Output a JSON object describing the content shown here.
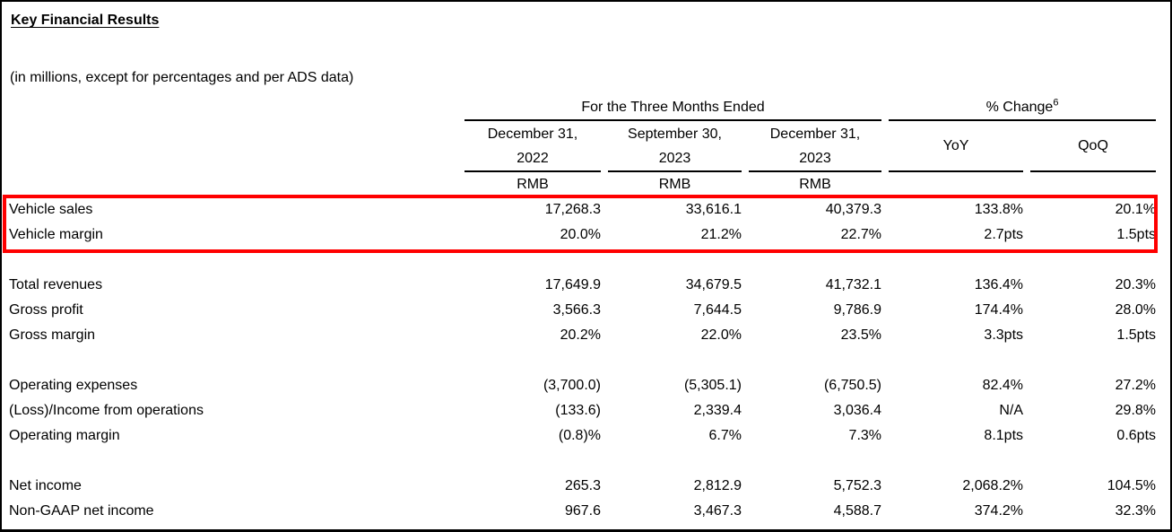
{
  "document": {
    "title": "Key Financial Results",
    "subtitle": "(in millions, except for percentages and per ADS data)"
  },
  "table": {
    "column_groups": [
      {
        "label": "For the Three Months Ended",
        "superscript": ""
      },
      {
        "label": "% Change",
        "superscript": "6"
      }
    ],
    "period_columns": [
      {
        "line1": "December 31,",
        "line2": "2022",
        "unit": "RMB"
      },
      {
        "line1": "September 30,",
        "line2": "2023",
        "unit": "RMB"
      },
      {
        "line1": "December 31,",
        "line2": "2023",
        "unit": "RMB"
      }
    ],
    "change_columns": [
      {
        "label": "YoY"
      },
      {
        "label": "QoQ"
      }
    ],
    "groups": [
      {
        "rows": [
          {
            "label": "Vehicle sales",
            "values": [
              "17,268.3",
              "33,616.1",
              "40,379.3",
              "133.8%",
              "20.1%"
            ],
            "highlighted": true
          },
          {
            "label": "Vehicle margin",
            "values": [
              "20.0%",
              "21.2%",
              "22.7%",
              "2.7pts",
              "1.5pts"
            ],
            "highlighted": true
          }
        ]
      },
      {
        "rows": [
          {
            "label": "Total revenues",
            "values": [
              "17,649.9",
              "34,679.5",
              "41,732.1",
              "136.4%",
              "20.3%"
            ],
            "highlighted": false
          },
          {
            "label": "Gross profit",
            "values": [
              "3,566.3",
              "7,644.5",
              "9,786.9",
              "174.4%",
              "28.0%"
            ],
            "highlighted": false
          },
          {
            "label": "Gross margin",
            "values": [
              "20.2%",
              "22.0%",
              "23.5%",
              "3.3pts",
              "1.5pts"
            ],
            "highlighted": false
          }
        ]
      },
      {
        "rows": [
          {
            "label": "Operating expenses",
            "values": [
              "(3,700.0)",
              "(5,305.1)",
              "(6,750.5)",
              "82.4%",
              "27.2%"
            ],
            "highlighted": false
          },
          {
            "label": "(Loss)/Income from operations",
            "values": [
              "(133.6)",
              "2,339.4",
              "3,036.4",
              "N/A",
              "29.8%"
            ],
            "highlighted": false
          },
          {
            "label": "Operating margin",
            "values": [
              "(0.8)%",
              "6.7%",
              "7.3%",
              "8.1pts",
              "0.6pts"
            ],
            "highlighted": false
          }
        ]
      },
      {
        "rows": [
          {
            "label": "Net income",
            "values": [
              "265.3",
              "2,812.9",
              "5,752.3",
              "2,068.2%",
              "104.5%"
            ],
            "highlighted": false
          },
          {
            "label": "Non-GAAP net income",
            "values": [
              "967.6",
              "3,467.3",
              "4,588.7",
              "374.2%",
              "32.3%"
            ],
            "highlighted": false
          }
        ]
      }
    ]
  },
  "annotation": {
    "highlight_color": "#ff0000"
  }
}
